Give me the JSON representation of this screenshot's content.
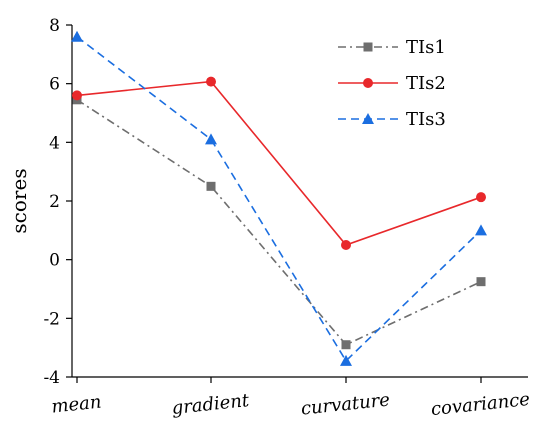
{
  "chart_data": {
    "type": "line",
    "categories": [
      "mean",
      "gradient",
      "curvature",
      "covariance"
    ],
    "ylabel": "scores",
    "xlabel": "",
    "ylim": [
      -4,
      8
    ],
    "yticks": [
      -4,
      -2,
      0,
      2,
      4,
      6,
      8
    ],
    "grid": false,
    "legend_position": "top-right",
    "series": [
      {
        "name": "TIs1",
        "values": [
          5.45,
          2.5,
          -2.9,
          -0.75
        ],
        "color": "#6e6e6e",
        "dash": "dashdot",
        "marker": "square"
      },
      {
        "name": "TIs2",
        "values": [
          5.6,
          6.07,
          0.5,
          2.13
        ],
        "color": "#e8282b",
        "dash": "solid",
        "marker": "circle"
      },
      {
        "name": "TIs3",
        "values": [
          7.6,
          4.1,
          -3.45,
          1.0
        ],
        "color": "#1b6ee0",
        "dash": "dashed",
        "marker": "triangle"
      }
    ]
  }
}
